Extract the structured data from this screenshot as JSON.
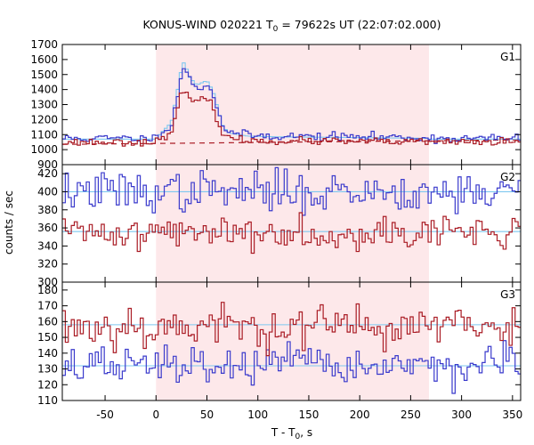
{
  "chart_data": {
    "type": "line",
    "title": {
      "prefix": "KONUS-WIND 020221 T",
      "sub": "0",
      "suffix": " = 79622s UT (22:07:02.000)"
    },
    "xlabel": {
      "prefix": "T - T",
      "sub": "0",
      "suffix": ", s"
    },
    "ylabel": "counts / sec",
    "xlim": [
      -92,
      358
    ],
    "xticks": [
      -50,
      0,
      50,
      100,
      150,
      200,
      250,
      300,
      350
    ],
    "highlight_interval": [
      0,
      268
    ],
    "highlight_color": "#fde8ea",
    "bin_width": 2.944,
    "colors": {
      "upper": "#3a3acc",
      "lower": "#aa1c25",
      "fit": "#7ec8f0",
      "background": "#aa1c25"
    },
    "panels": [
      {
        "tag": "G1",
        "ylim": [
          900,
          1700
        ],
        "yticks": [
          1000,
          1100,
          1200,
          1300,
          1400,
          1500,
          1600,
          1700
        ],
        "bottom_tick_label": "900",
        "series": [
          {
            "role": "upper",
            "base": 1075,
            "noise": 14,
            "seed": 11,
            "pulse": [
              [
                0,
                0
              ],
              [
                5,
                40
              ],
              [
                15,
                90
              ],
              [
                20,
                240
              ],
              [
                25,
                420
              ],
              [
                28,
                500
              ],
              [
                32,
                400
              ],
              [
                40,
                330
              ],
              [
                50,
                360
              ],
              [
                56,
                300
              ],
              [
                62,
                160
              ],
              [
                66,
                80
              ],
              [
                72,
                40
              ],
              [
                90,
                20
              ],
              [
                120,
                15
              ],
              [
                200,
                10
              ],
              [
                268,
                5
              ]
            ]
          },
          {
            "role": "lower",
            "base": 1050,
            "noise": 12,
            "seed": 23,
            "pulse": [
              [
                0,
                0
              ],
              [
                5,
                30
              ],
              [
                15,
                70
              ],
              [
                20,
                180
              ],
              [
                25,
                320
              ],
              [
                28,
                340
              ],
              [
                32,
                300
              ],
              [
                40,
                260
              ],
              [
                50,
                290
              ],
              [
                56,
                240
              ],
              [
                62,
                120
              ],
              [
                66,
                50
              ],
              [
                72,
                25
              ],
              [
                90,
                10
              ],
              [
                268,
                0
              ]
            ]
          },
          {
            "role": "fit",
            "base": 1070,
            "noise": 0,
            "seed": 0,
            "pulse": [
              [
                0,
                0
              ],
              [
                5,
                40
              ],
              [
                15,
                110
              ],
              [
                20,
                280
              ],
              [
                25,
                470
              ],
              [
                28,
                520
              ],
              [
                32,
                420
              ],
              [
                40,
                360
              ],
              [
                50,
                390
              ],
              [
                56,
                320
              ],
              [
                62,
                170
              ],
              [
                66,
                80
              ],
              [
                72,
                40
              ],
              [
                90,
                20
              ],
              [
                120,
                15
              ],
              [
                200,
                10
              ],
              [
                268,
                5
              ]
            ]
          }
        ],
        "background": {
          "left": [
            -92,
            1035
          ],
          "right": [
            358,
            1065
          ]
        }
      },
      {
        "tag": "G2",
        "ylim": [
          300,
          430
        ],
        "yticks": [
          300,
          320,
          340,
          360,
          380,
          400,
          420
        ],
        "series": [
          {
            "role": "upper",
            "base": 400,
            "noise": 11,
            "seed": 37,
            "pulse": []
          },
          {
            "role": "lower",
            "base": 355,
            "noise": 9,
            "seed": 41,
            "pulse": []
          },
          {
            "role": "fit",
            "base": 400,
            "noise": 0,
            "seed": 0,
            "pulse": []
          },
          {
            "role": "fit",
            "base": 356,
            "noise": 0,
            "seed": 0,
            "pulse": []
          }
        ]
      },
      {
        "tag": "G3",
        "ylim": [
          110,
          185
        ],
        "yticks": [
          110,
          120,
          130,
          140,
          150,
          160,
          170,
          180
        ],
        "series": [
          {
            "role": "lower",
            "base": 157,
            "noise": 7,
            "seed": 53,
            "pulse": []
          },
          {
            "role": "upper",
            "base": 132,
            "noise": 6,
            "seed": 67,
            "pulse": []
          },
          {
            "role": "fit",
            "base": 158,
            "noise": 0,
            "seed": 0,
            "pulse": []
          },
          {
            "role": "fit",
            "base": 132,
            "noise": 0,
            "seed": 0,
            "pulse": []
          }
        ]
      }
    ]
  }
}
